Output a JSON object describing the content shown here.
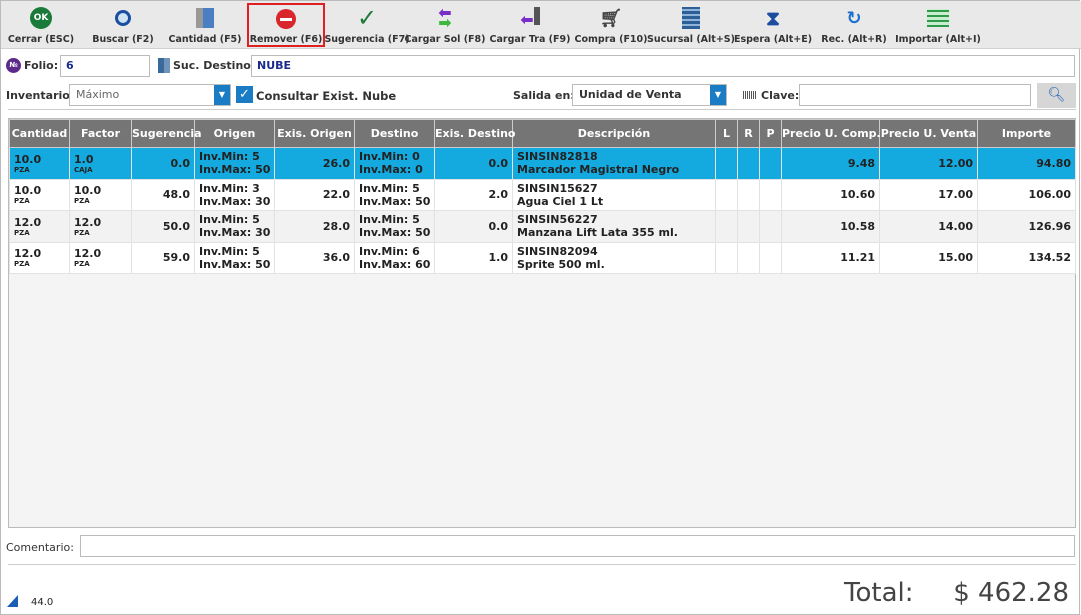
{
  "toolbar": [
    {
      "label": "Cerrar (ESC)",
      "icon": "ok-icon"
    },
    {
      "label": "Buscar (F2)",
      "icon": "search-icon"
    },
    {
      "label": "Cantidad (F5)",
      "icon": "boxes-icon"
    },
    {
      "label": "Remover (F6)",
      "icon": "remove-icon",
      "selected": true
    },
    {
      "label": "Sugerencia (F7)",
      "icon": "check-icon"
    },
    {
      "label": "Cargar Sol (F8)",
      "icon": "arrows-swap-icon"
    },
    {
      "label": "Cargar Tra (F9)",
      "icon": "door-arrow-icon"
    },
    {
      "label": "Compra (F10)",
      "icon": "cart-icon"
    },
    {
      "label": "Sucursal (Alt+S)",
      "icon": "building-icon"
    },
    {
      "label": "Espera (Alt+E)",
      "icon": "hourglass-icon"
    },
    {
      "label": "Rec. (Alt+R)",
      "icon": "recover-icon"
    },
    {
      "label": "Importar (Alt+I)",
      "icon": "excel-icon"
    }
  ],
  "form": {
    "folio_label": "Folio:",
    "folio_value": "6",
    "suc_label": "Suc. Destino:",
    "suc_value": "NUBE",
    "inventario_label": "Inventario:",
    "inventario_value": "Máximo",
    "consultar_label": "Consultar Exist. Nube",
    "consultar_checked": true,
    "salida_label": "Salida en:",
    "salida_value": "Unidad de Venta",
    "clave_label": "Clave:",
    "clave_value": ""
  },
  "table": {
    "headers": [
      "Cantidad",
      "Factor",
      "Sugerencia",
      "Origen",
      "Exis. Origen",
      "Destino",
      "Exis. Destino",
      "Descripción",
      "L",
      "R",
      "P",
      "Precio U. Comp.",
      "Precio U. Venta",
      "Importe"
    ],
    "rows": [
      {
        "cant": "10.0",
        "cu": "PZA",
        "fac": "1.0",
        "fu": "CAJA",
        "sug": "0.0",
        "o1": "Inv.Min: 5",
        "o2": "Inv.Max: 50",
        "eo": "26.0",
        "d1": "Inv.Min: 0",
        "d2": "Inv.Max: 0",
        "ed": "0.0",
        "code": "SINSIN82818",
        "desc": "Marcador Magistral Negro",
        "l": "",
        "r": "",
        "p": "",
        "pc": "9.48",
        "pv": "12.00",
        "imp": "94.80"
      },
      {
        "cant": "10.0",
        "cu": "PZA",
        "fac": "10.0",
        "fu": "PZA",
        "sug": "48.0",
        "o1": "Inv.Min: 3",
        "o2": "Inv.Max: 30",
        "eo": "22.0",
        "d1": "Inv.Min: 5",
        "d2": "Inv.Max: 50",
        "ed": "2.0",
        "code": "SINSIN15627",
        "desc": "Agua Ciel 1 Lt",
        "l": "",
        "r": "",
        "p": "",
        "pc": "10.60",
        "pv": "17.00",
        "imp": "106.00"
      },
      {
        "cant": "12.0",
        "cu": "PZA",
        "fac": "12.0",
        "fu": "PZA",
        "sug": "50.0",
        "o1": "Inv.Min: 5",
        "o2": "Inv.Max: 30",
        "eo": "28.0",
        "d1": "Inv.Min: 5",
        "d2": "Inv.Max: 50",
        "ed": "0.0",
        "code": "SINSIN56227",
        "desc": "Manzana Lift Lata 355 ml.",
        "l": "",
        "r": "",
        "p": "",
        "pc": "10.58",
        "pv": "14.00",
        "imp": "126.96"
      },
      {
        "cant": "12.0",
        "cu": "PZA",
        "fac": "12.0",
        "fu": "PZA",
        "sug": "59.0",
        "o1": "Inv.Min: 5",
        "o2": "Inv.Max: 50",
        "eo": "36.0",
        "d1": "Inv.Min: 6",
        "d2": "Inv.Max: 60",
        "ed": "1.0",
        "code": "SINSIN82094",
        "desc": "Sprite 500 ml.",
        "l": "",
        "r": "",
        "p": "",
        "pc": "11.21",
        "pv": "15.00",
        "imp": "134.52"
      }
    ]
  },
  "footer": {
    "comentario_label": "Comentario:",
    "comentario_value": "",
    "count": "44.0",
    "total_label": "Total:",
    "total_value": "$ 462.28"
  }
}
